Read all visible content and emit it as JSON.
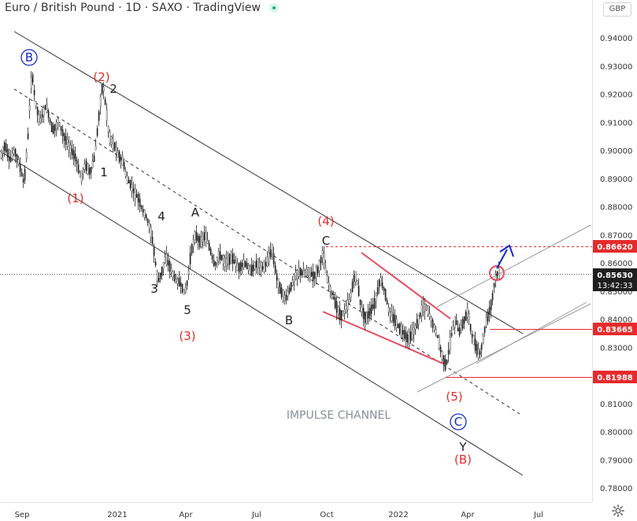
{
  "header": {
    "title": "Euro / British Pound · 1D · SAXO · TradingView",
    "currency": "GBP",
    "status_dot_color": "#22ab94"
  },
  "chart_data": {
    "type": "line",
    "subtype": "candlestick",
    "title": "Euro / British Pound · 1D · SAXO · TradingView",
    "ylim": [
      0.775,
      0.955
    ],
    "y_ticks": [
      "0.94000",
      "0.93000",
      "0.92000",
      "0.91000",
      "0.90000",
      "0.89000",
      "0.88000",
      "0.87000",
      "0.86000",
      "0.85000",
      "0.84000",
      "0.83000",
      "0.82000",
      "0.81000",
      "0.80000",
      "0.79000",
      "0.78000"
    ],
    "x_ticks": [
      "Sep",
      "2021",
      "Apr",
      "Jul",
      "Oct",
      "2022",
      "Apr",
      "Jul"
    ],
    "price_labels": [
      {
        "value": "0.86620",
        "color": "#e52b2b",
        "kind": "line"
      },
      {
        "value": "0.85630",
        "sub": "13:42:33",
        "color": "#1e1e1e",
        "kind": "last"
      },
      {
        "value": "0.83665",
        "color": "#e52b2b",
        "kind": "line"
      },
      {
        "value": "0.81988",
        "color": "#e52b2b",
        "kind": "line"
      }
    ],
    "price_path": [
      [
        0,
        0.898
      ],
      [
        6,
        0.902
      ],
      [
        12,
        0.896
      ],
      [
        18,
        0.9
      ],
      [
        24,
        0.895
      ],
      [
        30,
        0.888
      ],
      [
        35,
        0.905
      ],
      [
        38,
        0.92
      ],
      [
        40,
        0.928
      ],
      [
        44,
        0.918
      ],
      [
        50,
        0.91
      ],
      [
        58,
        0.916
      ],
      [
        66,
        0.907
      ],
      [
        74,
        0.91
      ],
      [
        82,
        0.904
      ],
      [
        90,
        0.9
      ],
      [
        96,
        0.897
      ],
      [
        102,
        0.89
      ],
      [
        108,
        0.895
      ],
      [
        114,
        0.892
      ],
      [
        120,
        0.898
      ],
      [
        126,
        0.915
      ],
      [
        130,
        0.924
      ],
      [
        134,
        0.915
      ],
      [
        138,
        0.905
      ],
      [
        144,
        0.902
      ],
      [
        150,
        0.898
      ],
      [
        156,
        0.896
      ],
      [
        160,
        0.89
      ],
      [
        165,
        0.888
      ],
      [
        170,
        0.885
      ],
      [
        175,
        0.883
      ],
      [
        180,
        0.879
      ],
      [
        186,
        0.876
      ],
      [
        192,
        0.87
      ],
      [
        196,
        0.862
      ],
      [
        200,
        0.853
      ],
      [
        205,
        0.857
      ],
      [
        210,
        0.862
      ],
      [
        216,
        0.858
      ],
      [
        222,
        0.854
      ],
      [
        228,
        0.853
      ],
      [
        234,
        0.849
      ],
      [
        238,
        0.854
      ],
      [
        242,
        0.864
      ],
      [
        248,
        0.87
      ],
      [
        254,
        0.867
      ],
      [
        260,
        0.87
      ],
      [
        266,
        0.865
      ],
      [
        272,
        0.859
      ],
      [
        278,
        0.863
      ],
      [
        286,
        0.86
      ],
      [
        294,
        0.862
      ],
      [
        302,
        0.858
      ],
      [
        310,
        0.86
      ],
      [
        318,
        0.857
      ],
      [
        326,
        0.86
      ],
      [
        334,
        0.858
      ],
      [
        340,
        0.861
      ],
      [
        345,
        0.865
      ],
      [
        350,
        0.856
      ],
      [
        356,
        0.85
      ],
      [
        362,
        0.847
      ],
      [
        368,
        0.851
      ],
      [
        374,
        0.855
      ],
      [
        380,
        0.857
      ],
      [
        386,
        0.856
      ],
      [
        392,
        0.857
      ],
      [
        398,
        0.855
      ],
      [
        404,
        0.858
      ],
      [
        410,
        0.864
      ],
      [
        414,
        0.855
      ],
      [
        420,
        0.85
      ],
      [
        426,
        0.845
      ],
      [
        432,
        0.841
      ],
      [
        438,
        0.843
      ],
      [
        444,
        0.847
      ],
      [
        450,
        0.856
      ],
      [
        454,
        0.852
      ],
      [
        458,
        0.844
      ],
      [
        464,
        0.84
      ],
      [
        470,
        0.843
      ],
      [
        476,
        0.846
      ],
      [
        482,
        0.854
      ],
      [
        488,
        0.85
      ],
      [
        494,
        0.842
      ],
      [
        500,
        0.84
      ],
      [
        506,
        0.837
      ],
      [
        512,
        0.835
      ],
      [
        518,
        0.833
      ],
      [
        524,
        0.835
      ],
      [
        530,
        0.839
      ],
      [
        536,
        0.844
      ],
      [
        542,
        0.844
      ],
      [
        548,
        0.839
      ],
      [
        554,
        0.835
      ],
      [
        560,
        0.828
      ],
      [
        566,
        0.823
      ],
      [
        570,
        0.83
      ],
      [
        574,
        0.836
      ],
      [
        578,
        0.84
      ],
      [
        582,
        0.835
      ],
      [
        588,
        0.839
      ],
      [
        594,
        0.843
      ],
      [
        598,
        0.835
      ],
      [
        604,
        0.83
      ],
      [
        608,
        0.827
      ],
      [
        612,
        0.831
      ],
      [
        616,
        0.838
      ],
      [
        620,
        0.842
      ],
      [
        624,
        0.846
      ],
      [
        627,
        0.852
      ],
      [
        630,
        0.856
      ],
      [
        633,
        0.8563
      ]
    ],
    "wave_labels": [
      {
        "text": "B",
        "color": "#1428c8",
        "circled": true
      },
      {
        "text": "(2)",
        "color": "#e52b2b"
      },
      {
        "text": "2",
        "color": "#1e1e1e"
      },
      {
        "text": "1",
        "color": "#1e1e1e"
      },
      {
        "text": "(1)",
        "color": "#e52b2b"
      },
      {
        "text": "4",
        "color": "#1e1e1e"
      },
      {
        "text": "A",
        "color": "#1e1e1e"
      },
      {
        "text": "3",
        "color": "#1e1e1e"
      },
      {
        "text": "5",
        "color": "#1e1e1e"
      },
      {
        "text": "(3)",
        "color": "#e52b2b"
      },
      {
        "text": "B",
        "color": "#1e1e1e"
      },
      {
        "text": "(4)",
        "color": "#e52b2b"
      },
      {
        "text": "C",
        "color": "#1e1e1e"
      },
      {
        "text": "(5)",
        "color": "#e52b2b"
      },
      {
        "text": "C",
        "color": "#1428c8",
        "circled": true
      },
      {
        "text": "Y",
        "color": "#1e1e1e"
      },
      {
        "text": "(B)",
        "color": "#e52b2b"
      }
    ],
    "annotations": [
      "IMPULSE CHANNEL"
    ],
    "colors": {
      "candle": "#1e1e1e",
      "channel": "#333333",
      "wedge": "#e84a5f",
      "forecast_arrow": "#1428c8",
      "accent_red": "#e52b2b"
    }
  }
}
